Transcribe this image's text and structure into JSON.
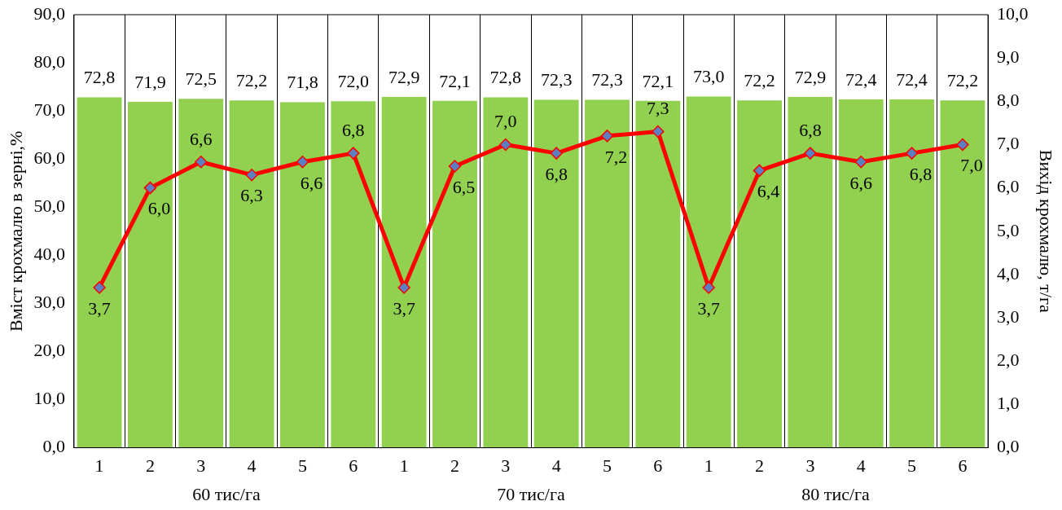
{
  "chart_data": {
    "type": "bar",
    "ylabel": "Вміст крохмалю в зерні,%",
    "y2label": "Вихід крохмалю, т/га",
    "categories": [
      "1",
      "2",
      "3",
      "4",
      "5",
      "6",
      "1",
      "2",
      "3",
      "4",
      "5",
      "6",
      "1",
      "2",
      "3",
      "4",
      "5",
      "6"
    ],
    "series": [
      {
        "color": "#92d050",
        "values": [
          72.8,
          71.9,
          72.5,
          72.2,
          71.8,
          72.0,
          72.9,
          72.1,
          72.8,
          72.3,
          72.3,
          72.1,
          73.0,
          72.2,
          72.9,
          72.4,
          72.4,
          72.2
        ],
        "value_labels": [
          "72,8",
          "71,9",
          "72,5",
          "72,2",
          "71,8",
          "72,0",
          "72,9",
          "72,1",
          "72,8",
          "72,3",
          "72,3",
          "72,1",
          "73,0",
          "72,2",
          "72,9",
          "72,4",
          "72,4",
          "72,2"
        ]
      },
      {
        "type": "line",
        "axis": "y2",
        "color": "#ff0000",
        "marker": "diamond",
        "values": [
          3.7,
          6.0,
          6.6,
          6.3,
          6.6,
          6.8,
          3.7,
          6.5,
          7.0,
          6.8,
          7.2,
          7.3,
          3.7,
          6.4,
          6.8,
          6.6,
          6.8,
          7.0
        ],
        "value_labels": [
          "3,7",
          "6,0",
          "6,6",
          "6,3",
          "6,6",
          "6,8",
          "3,7",
          "6,5",
          "7,0",
          "6,8",
          "7,2",
          "7,3",
          "3,7",
          "6,4",
          "6,8",
          "6,6",
          "6,8",
          "7,0"
        ]
      }
    ],
    "annotations": [
      "60 тис/га",
      "70 тис/га",
      "80 тис/га"
    ],
    "ylim": [
      0,
      90
    ],
    "yticks": [
      {
        "value": 0,
        "label": "0,0"
      },
      {
        "value": 10,
        "label": "10,0"
      },
      {
        "value": 20,
        "label": "20,0"
      },
      {
        "value": 30,
        "label": "30,0"
      },
      {
        "value": 40,
        "label": "40,0"
      },
      {
        "value": 50,
        "label": "50,0"
      },
      {
        "value": 60,
        "label": "60,0"
      },
      {
        "value": 70,
        "label": "70,0"
      },
      {
        "value": 80,
        "label": "80,0"
      },
      {
        "value": 90,
        "label": "90,0"
      }
    ],
    "y2lim": [
      0,
      10
    ],
    "y2ticks": [
      {
        "value": 0,
        "label": "0,0"
      },
      {
        "value": 1,
        "label": "1,0"
      },
      {
        "value": 2,
        "label": "2,0"
      },
      {
        "value": 3,
        "label": "3,0"
      },
      {
        "value": 4,
        "label": "4,0"
      },
      {
        "value": 5,
        "label": "5,0"
      },
      {
        "value": 6,
        "label": "6,0"
      },
      {
        "value": 7,
        "label": "7,0"
      },
      {
        "value": 8,
        "label": "8,0"
      },
      {
        "value": 9,
        "label": "9,0"
      },
      {
        "value": 10,
        "label": "10,0"
      }
    ],
    "grid": "x",
    "legend": false
  }
}
